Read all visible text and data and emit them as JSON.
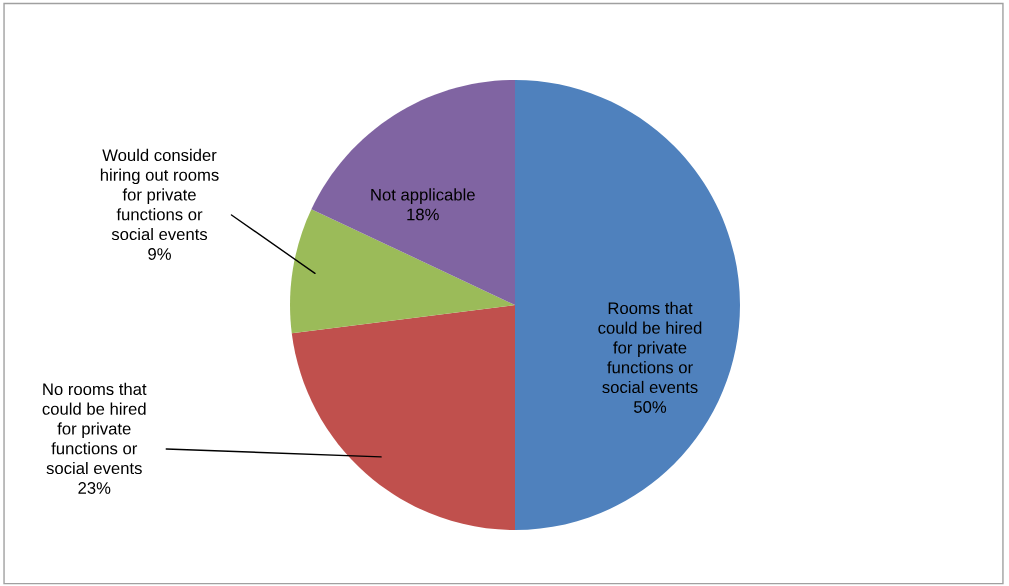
{
  "chart_data": {
    "type": "pie",
    "categories": [
      "Rooms that\ncould be hired\nfor private\nfunctions or\nsocial events",
      "No rooms that\ncould be hired\nfor private\nfunctions or\nsocial events",
      "Would consider\nhiring out rooms\nfor private\nfunctions or\nsocial events",
      "Not applicable"
    ],
    "values": [
      50,
      23,
      9,
      18
    ],
    "value_labels": [
      "50%",
      "23%",
      "9%",
      "18%"
    ],
    "colors": [
      "#4f81bd",
      "#c0504d",
      "#9bbb59",
      "#8064a2"
    ],
    "legend": false
  }
}
